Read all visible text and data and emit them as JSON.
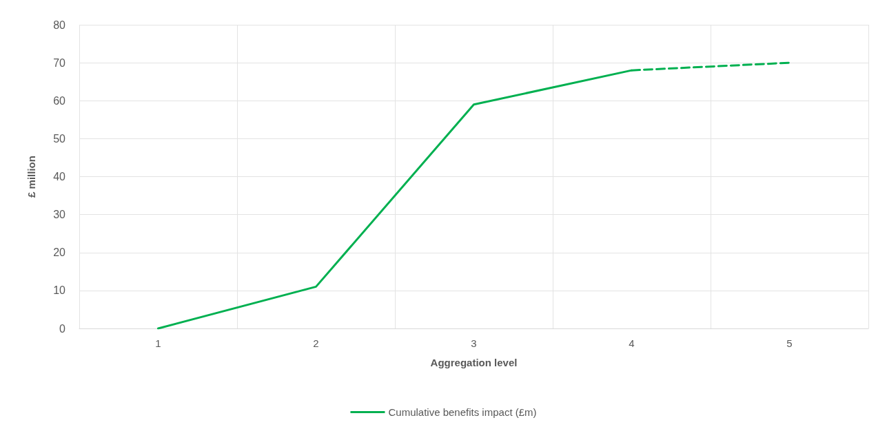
{
  "chart_data": {
    "type": "line",
    "xlabel": "Aggregation level",
    "ylabel": "£ million",
    "categories": [
      "1",
      "2",
      "3",
      "4",
      "5"
    ],
    "series": [
      {
        "name": "Cumulative benefits impact (£m)",
        "color": "#00b050",
        "values": [
          0,
          11,
          59,
          68,
          null
        ],
        "line_style": "solid"
      },
      {
        "color": "#00b050",
        "values": [
          null,
          null,
          null,
          68,
          70
        ],
        "line_style": "dashed"
      }
    ],
    "ylim": [
      0,
      80
    ],
    "yticks": [
      0,
      10,
      20,
      30,
      40,
      50,
      60,
      70,
      80
    ],
    "grid": true,
    "legend": "bottom",
    "marker": "none"
  }
}
